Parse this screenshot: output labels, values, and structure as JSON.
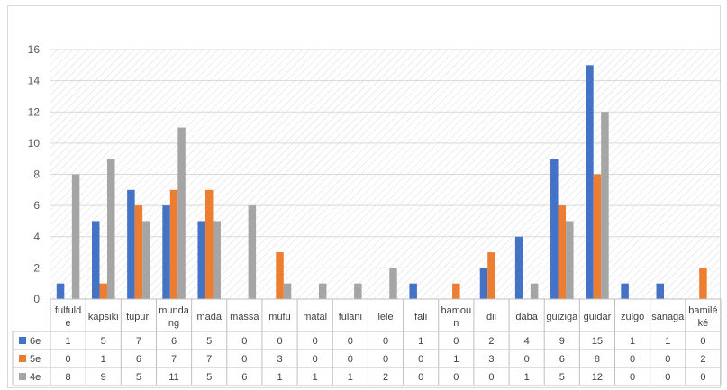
{
  "chart_data": {
    "type": "bar",
    "categories": [
      "fulfulde",
      "kapsiki",
      "tupuri",
      "mundang",
      "mada",
      "massa",
      "mufu",
      "matal",
      "fulani",
      "lele",
      "fali",
      "bamoun",
      "dii",
      "daba",
      "guiziga",
      "guidar",
      "zulgo",
      "sanaga",
      "bamiléké"
    ],
    "category_lines": [
      [
        "fulfuld",
        "e"
      ],
      [
        "kapsiki"
      ],
      [
        "tupuri"
      ],
      [
        "munda",
        "ng"
      ],
      [
        "mada"
      ],
      [
        "massa"
      ],
      [
        "mufu"
      ],
      [
        "matal"
      ],
      [
        "fulani"
      ],
      [
        "lele"
      ],
      [
        "fali"
      ],
      [
        "bamou",
        "n"
      ],
      [
        "dii"
      ],
      [
        "daba"
      ],
      [
        "guiziga"
      ],
      [
        "guidar"
      ],
      [
        "zulgo"
      ],
      [
        "sanaga"
      ],
      [
        "bamilé",
        "ké"
      ]
    ],
    "series": [
      {
        "name": "6e",
        "color": "#4472c4",
        "values": [
          1,
          5,
          7,
          6,
          5,
          0,
          0,
          0,
          0,
          0,
          1,
          0,
          2,
          4,
          9,
          15,
          1,
          1,
          0
        ]
      },
      {
        "name": "5e",
        "color": "#ed7d31",
        "values": [
          0,
          1,
          6,
          7,
          7,
          0,
          3,
          0,
          0,
          0,
          0,
          1,
          3,
          0,
          6,
          8,
          0,
          0,
          2
        ]
      },
      {
        "name": "4e",
        "color": "#a5a5a5",
        "values": [
          8,
          9,
          5,
          11,
          5,
          6,
          1,
          1,
          1,
          2,
          0,
          0,
          0,
          1,
          5,
          12,
          0,
          0,
          0
        ]
      }
    ],
    "yticks": [
      "0",
      "2",
      "4",
      "6",
      "8",
      "10",
      "12",
      "14",
      "16"
    ],
    "ylim": [
      0,
      16
    ],
    "grid": true,
    "legend": "data-table"
  }
}
